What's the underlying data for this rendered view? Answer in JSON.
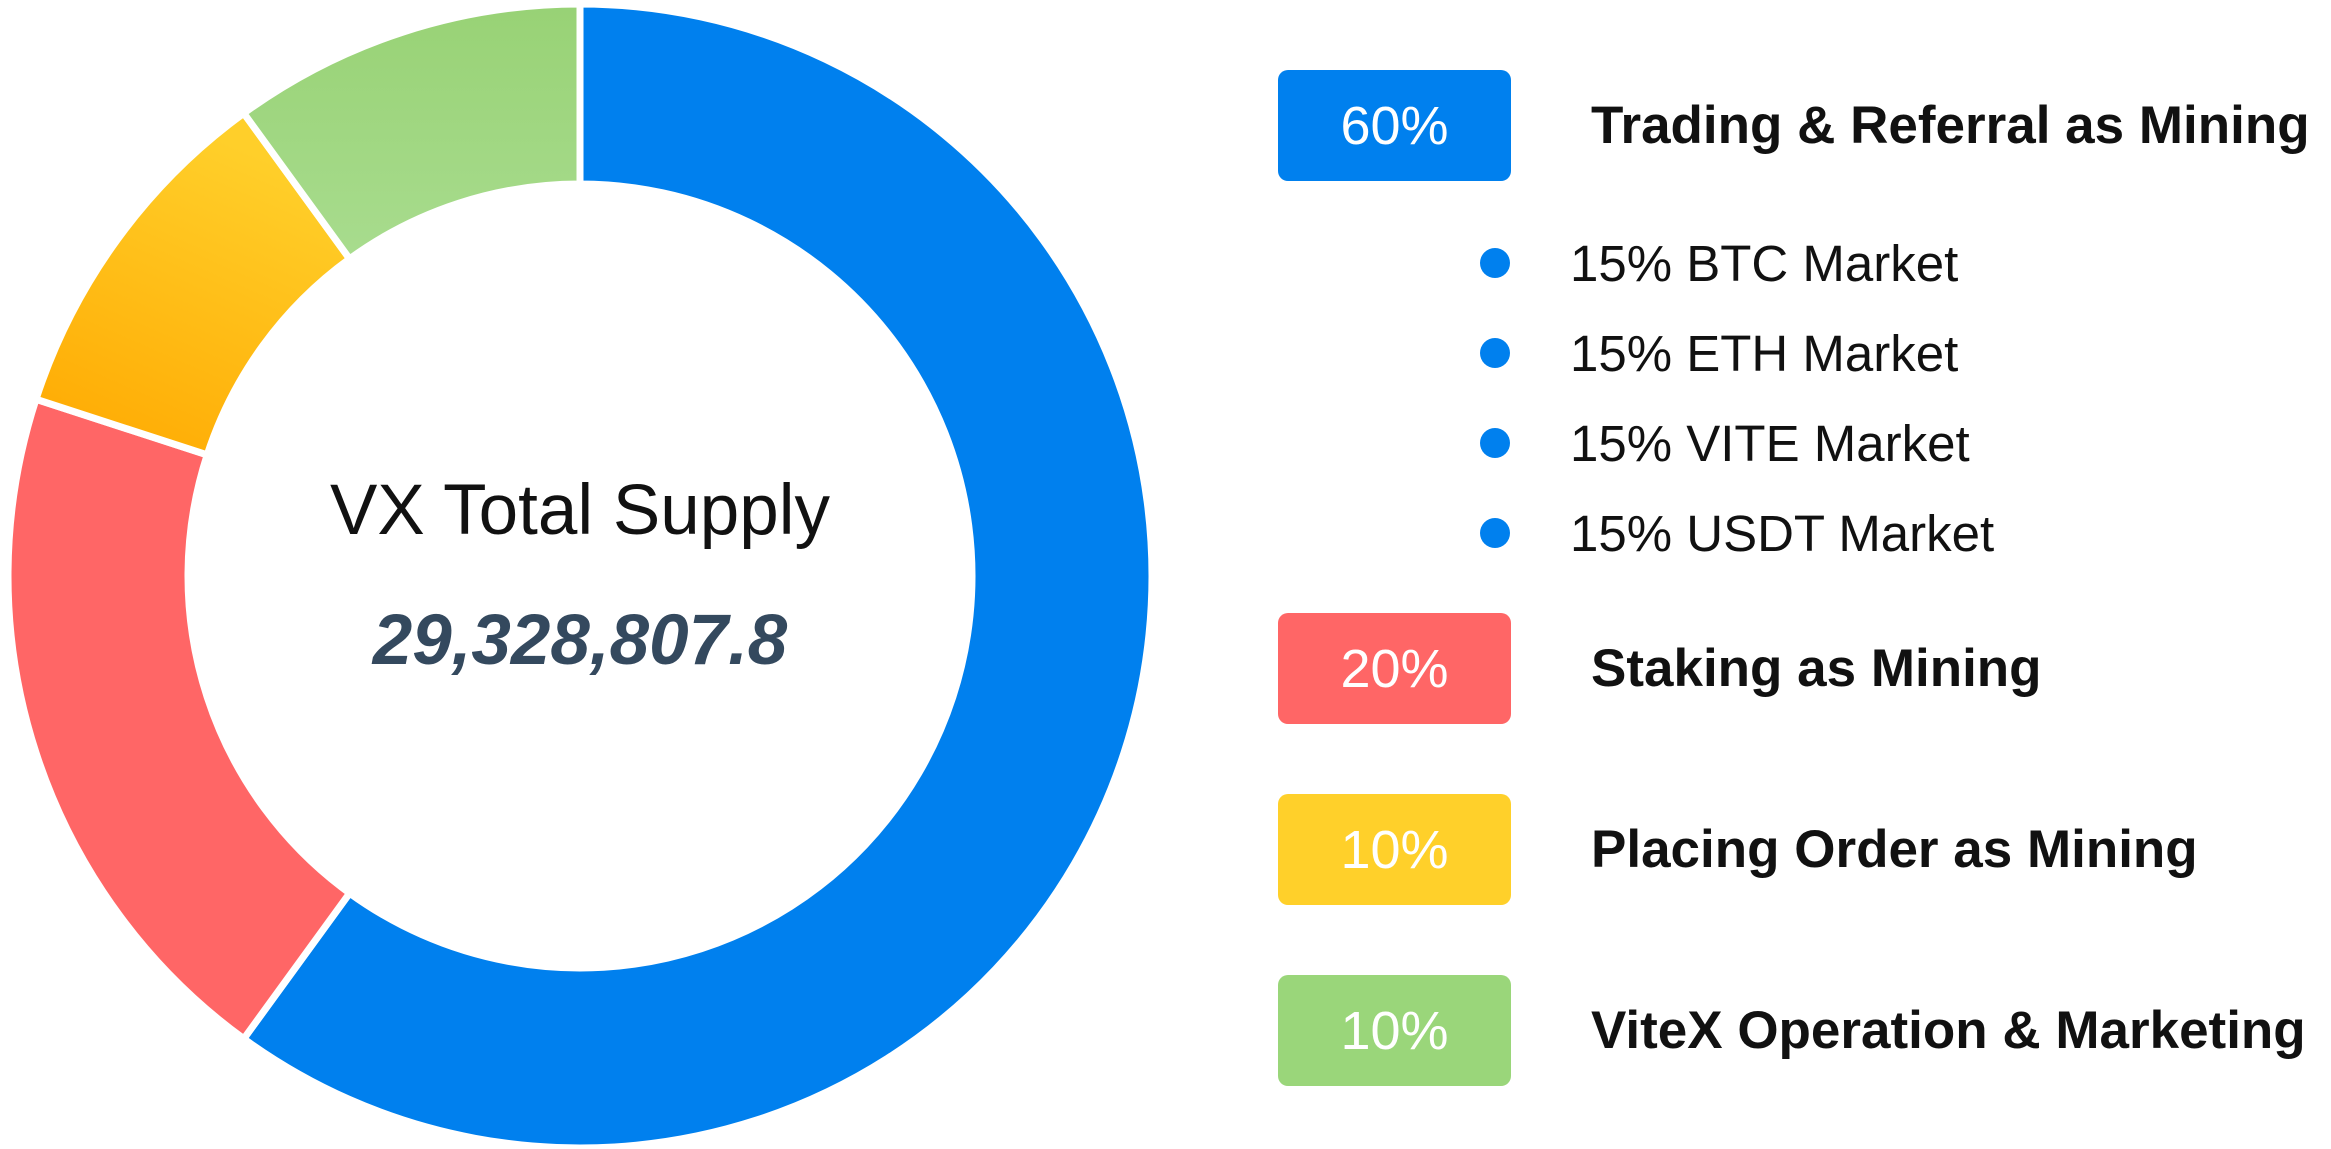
{
  "center": {
    "title": "VX Total Supply",
    "value": "29,328,807.8"
  },
  "chart_data": {
    "type": "pie",
    "title": "VX Total Supply",
    "categories": [
      "Trading & Referral as Mining",
      "Staking as Mining",
      "Placing Order as Mining",
      "ViteX Operation & Marketing"
    ],
    "values": [
      60,
      20,
      10,
      10
    ],
    "value_labels": [
      "60%",
      "20%",
      "10%",
      "10%"
    ],
    "colors": [
      "#0080ee",
      "#ff6666",
      "#ffc820",
      "#9ad67a"
    ],
    "donut": true,
    "sub_breakdown": {
      "parent": "Trading & Referral as Mining",
      "items": [
        {
          "label": "15% BTC Market",
          "value": 15
        },
        {
          "label": "15% ETH Market",
          "value": 15
        },
        {
          "label": "15% VITE Market",
          "value": 15
        },
        {
          "label": "15% USDT Market",
          "value": 15
        }
      ]
    }
  }
}
